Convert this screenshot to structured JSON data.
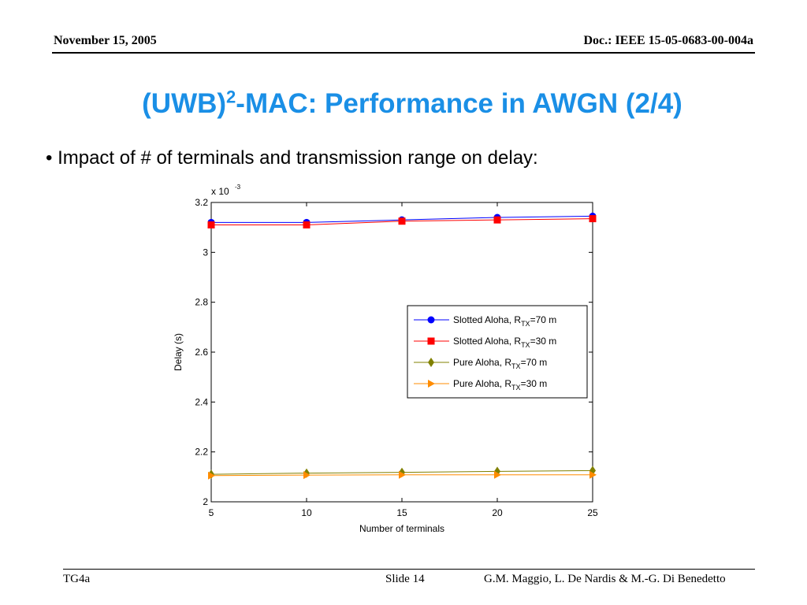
{
  "header": {
    "date": "November 15, 2005",
    "doc": "Doc.: IEEE 15-05-0683-00-004a"
  },
  "slide": {
    "title_pre": "(UWB)",
    "title_sup": "2",
    "title_post": "-MAC: Performance in AWGN  (2/4)",
    "bullet": "• Impact of # of terminals and transmission range on delay:"
  },
  "footer": {
    "left": "TG4a",
    "middle": "Slide 14",
    "right": "G.M. Maggio, L. De Nardis & M.-G. Di Benedetto"
  },
  "colors": {
    "title": "#1a8fe6",
    "slotted70": "#0000ff",
    "slotted30": "#ff0000",
    "pure70": "#808000",
    "pure30": "#ff8c00"
  },
  "chart_data": {
    "type": "line",
    "title": "",
    "xlabel": "Number of terminals",
    "ylabel": "Delay (s)",
    "y_multiplier_label": "x 10",
    "y_multiplier_exp": "-3",
    "x": [
      5,
      10,
      15,
      20,
      25
    ],
    "xlim": [
      5,
      25
    ],
    "ylim": [
      2.0,
      3.2
    ],
    "xticks": [
      5,
      10,
      15,
      20,
      25
    ],
    "yticks": [
      2,
      2.2,
      2.4,
      2.6,
      2.8,
      3,
      3.2
    ],
    "yticklabels": [
      "2",
      "2.2",
      "2.4",
      "2.6",
      "2.8",
      "3",
      "3.2"
    ],
    "grid": false,
    "legend_position": "right",
    "series": [
      {
        "name": "Slotted Aloha, R",
        "sub": "TX",
        "suffix": "=70 m",
        "marker": "circle",
        "color": "#0000ff",
        "values": [
          3.12,
          3.12,
          3.13,
          3.14,
          3.145
        ]
      },
      {
        "name": "Slotted Aloha, R",
        "sub": "TX",
        "suffix": "=30 m",
        "marker": "square",
        "color": "#ff0000",
        "values": [
          3.11,
          3.11,
          3.125,
          3.13,
          3.135
        ]
      },
      {
        "name": "Pure Aloha, R",
        "sub": "TX",
        "suffix": "=70 m",
        "marker": "diamond",
        "color": "#808000",
        "values": [
          2.11,
          2.115,
          2.118,
          2.122,
          2.125
        ]
      },
      {
        "name": "Pure Aloha, R",
        "sub": "TX",
        "suffix": "=30 m",
        "marker": "triangle-right",
        "color": "#ff8c00",
        "values": [
          2.105,
          2.107,
          2.108,
          2.108,
          2.108
        ]
      }
    ]
  }
}
